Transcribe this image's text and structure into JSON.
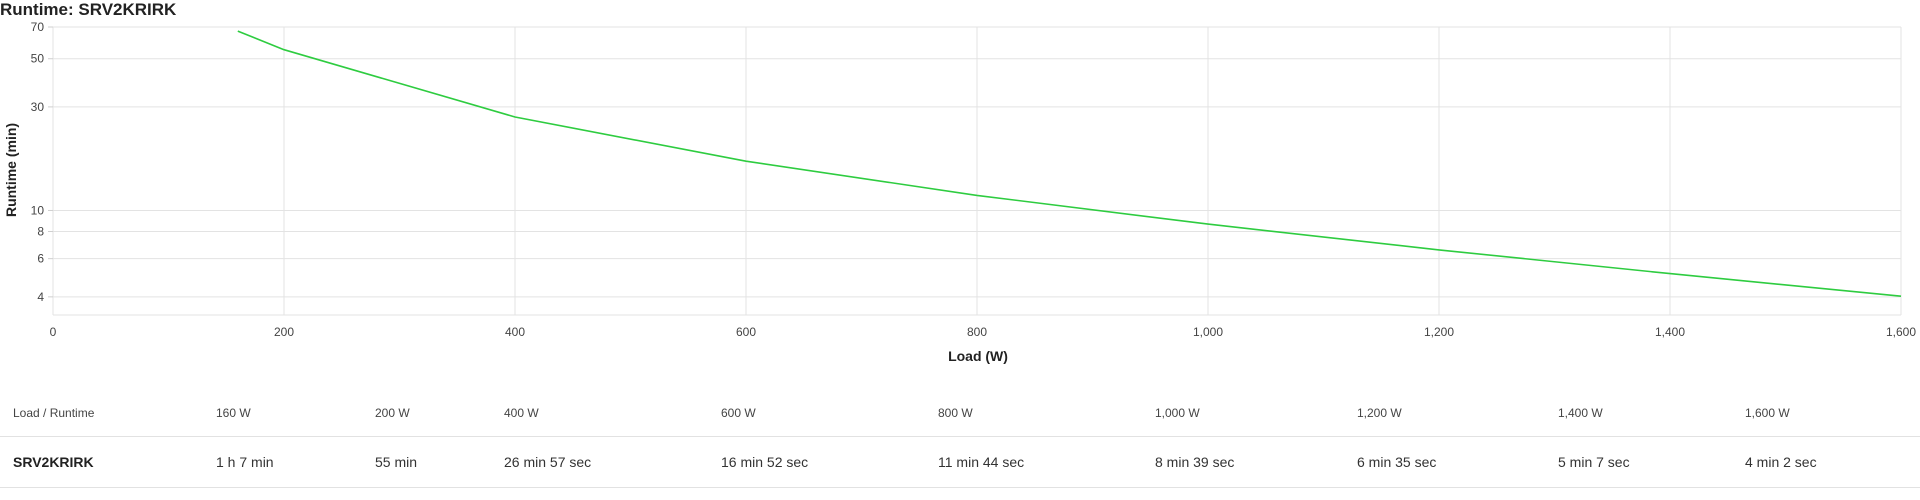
{
  "chart_data": {
    "type": "line",
    "title": "Runtime: SRV2KRIRK",
    "xlabel": "Load (W)",
    "ylabel": "Runtime (min)",
    "xlim": [
      0,
      1600
    ],
    "x_ticks": [
      0,
      200,
      400,
      600,
      800,
      1000,
      1200,
      1400,
      1600
    ],
    "x_tick_labels": [
      "0",
      "200",
      "400",
      "600",
      "800",
      "1,000",
      "1,200",
      "1,400",
      "1,600"
    ],
    "y_scale": "log",
    "ylim": [
      3.3,
      70
    ],
    "y_ticks": [
      4,
      6,
      8,
      10,
      30,
      50,
      70
    ],
    "grid": true,
    "series": [
      {
        "color": "#2ecc40",
        "x": [
          160,
          200,
          400,
          600,
          800,
          1000,
          1200,
          1400,
          1600
        ],
        "y": [
          67,
          55,
          26.95,
          16.87,
          11.73,
          8.65,
          6.58,
          5.12,
          4.03
        ]
      }
    ]
  },
  "table": {
    "header_label": "Load / Runtime",
    "columns": [
      "160 W",
      "200 W",
      "400 W",
      "600 W",
      "800 W",
      "1,000 W",
      "1,200 W",
      "1,400 W",
      "1,600 W"
    ],
    "row": {
      "name": "SRV2KRIRK",
      "values": [
        "1 h 7 min",
        "55 min",
        "26 min 57 sec",
        "16 min 52 sec",
        "11 min 44 sec",
        "8 min 39 sec",
        "6 min 35 sec",
        "5 min 7 sec",
        "4 min 2 sec"
      ]
    }
  }
}
